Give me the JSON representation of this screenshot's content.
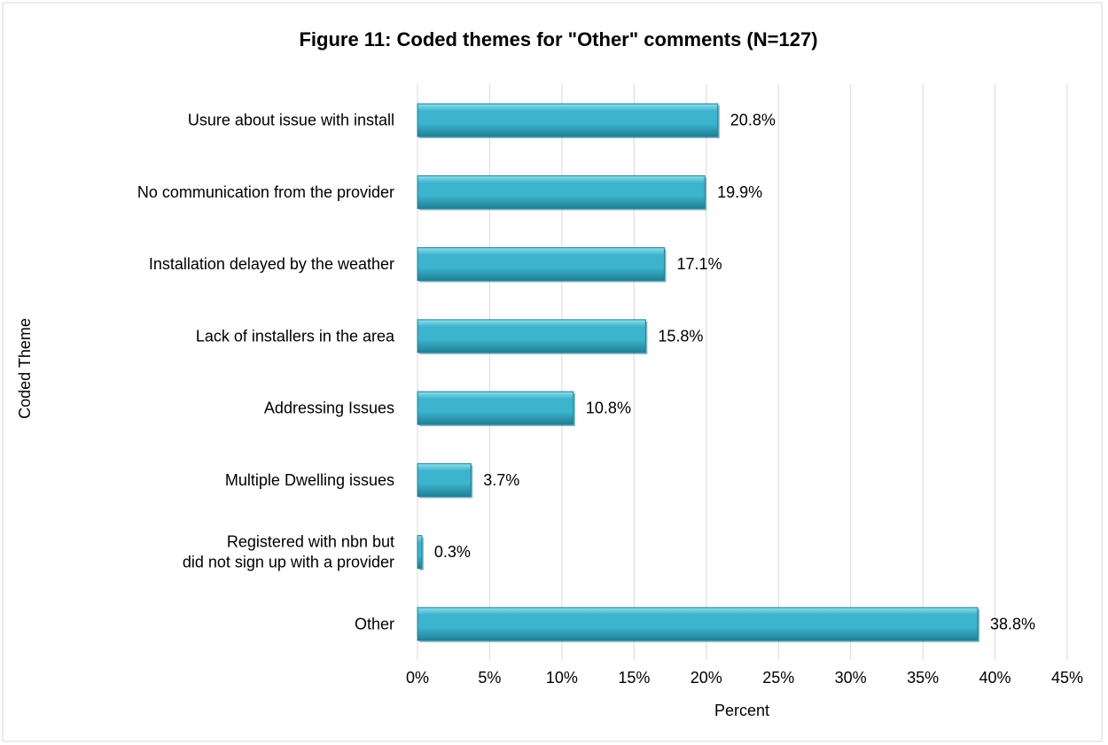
{
  "chart_data": {
    "type": "bar",
    "orientation": "horizontal",
    "title": "Figure 11: Coded themes for \"Other\" comments (N=127)",
    "xlabel": "Percent",
    "ylabel": "Coded Theme",
    "categories": [
      "Usure about issue with install",
      "No  communication from the provider",
      "Installation delayed by the weather",
      "Lack of installers in the area",
      "Addressing Issues",
      "Multiple Dwelling issues",
      "Registered with nbn but\ndid not sign up with a provider",
      "Other"
    ],
    "values": [
      20.8,
      19.9,
      17.1,
      15.8,
      10.8,
      3.7,
      0.3,
      38.8
    ],
    "value_labels": [
      "20.8%",
      "19.9%",
      "17.1%",
      "15.8%",
      "10.8%",
      "3.7%",
      "0.3%",
      "38.8%"
    ],
    "xlim": [
      0,
      45
    ],
    "x_ticks": [
      0,
      5,
      10,
      15,
      20,
      25,
      30,
      35,
      40,
      45
    ],
    "x_tick_labels": [
      "0%",
      "5%",
      "10%",
      "15%",
      "20%",
      "25%",
      "30%",
      "35%",
      "40%",
      "45%"
    ],
    "grid": "vertical",
    "legend": "none",
    "bar_color": "#3DB4CE",
    "bar_color_light": "#8FDDEB",
    "bar_color_dark": "#1F7F95",
    "grid_color": "#D9D9D9",
    "border_color": "#D9D9D9",
    "text_color": "#000000"
  }
}
